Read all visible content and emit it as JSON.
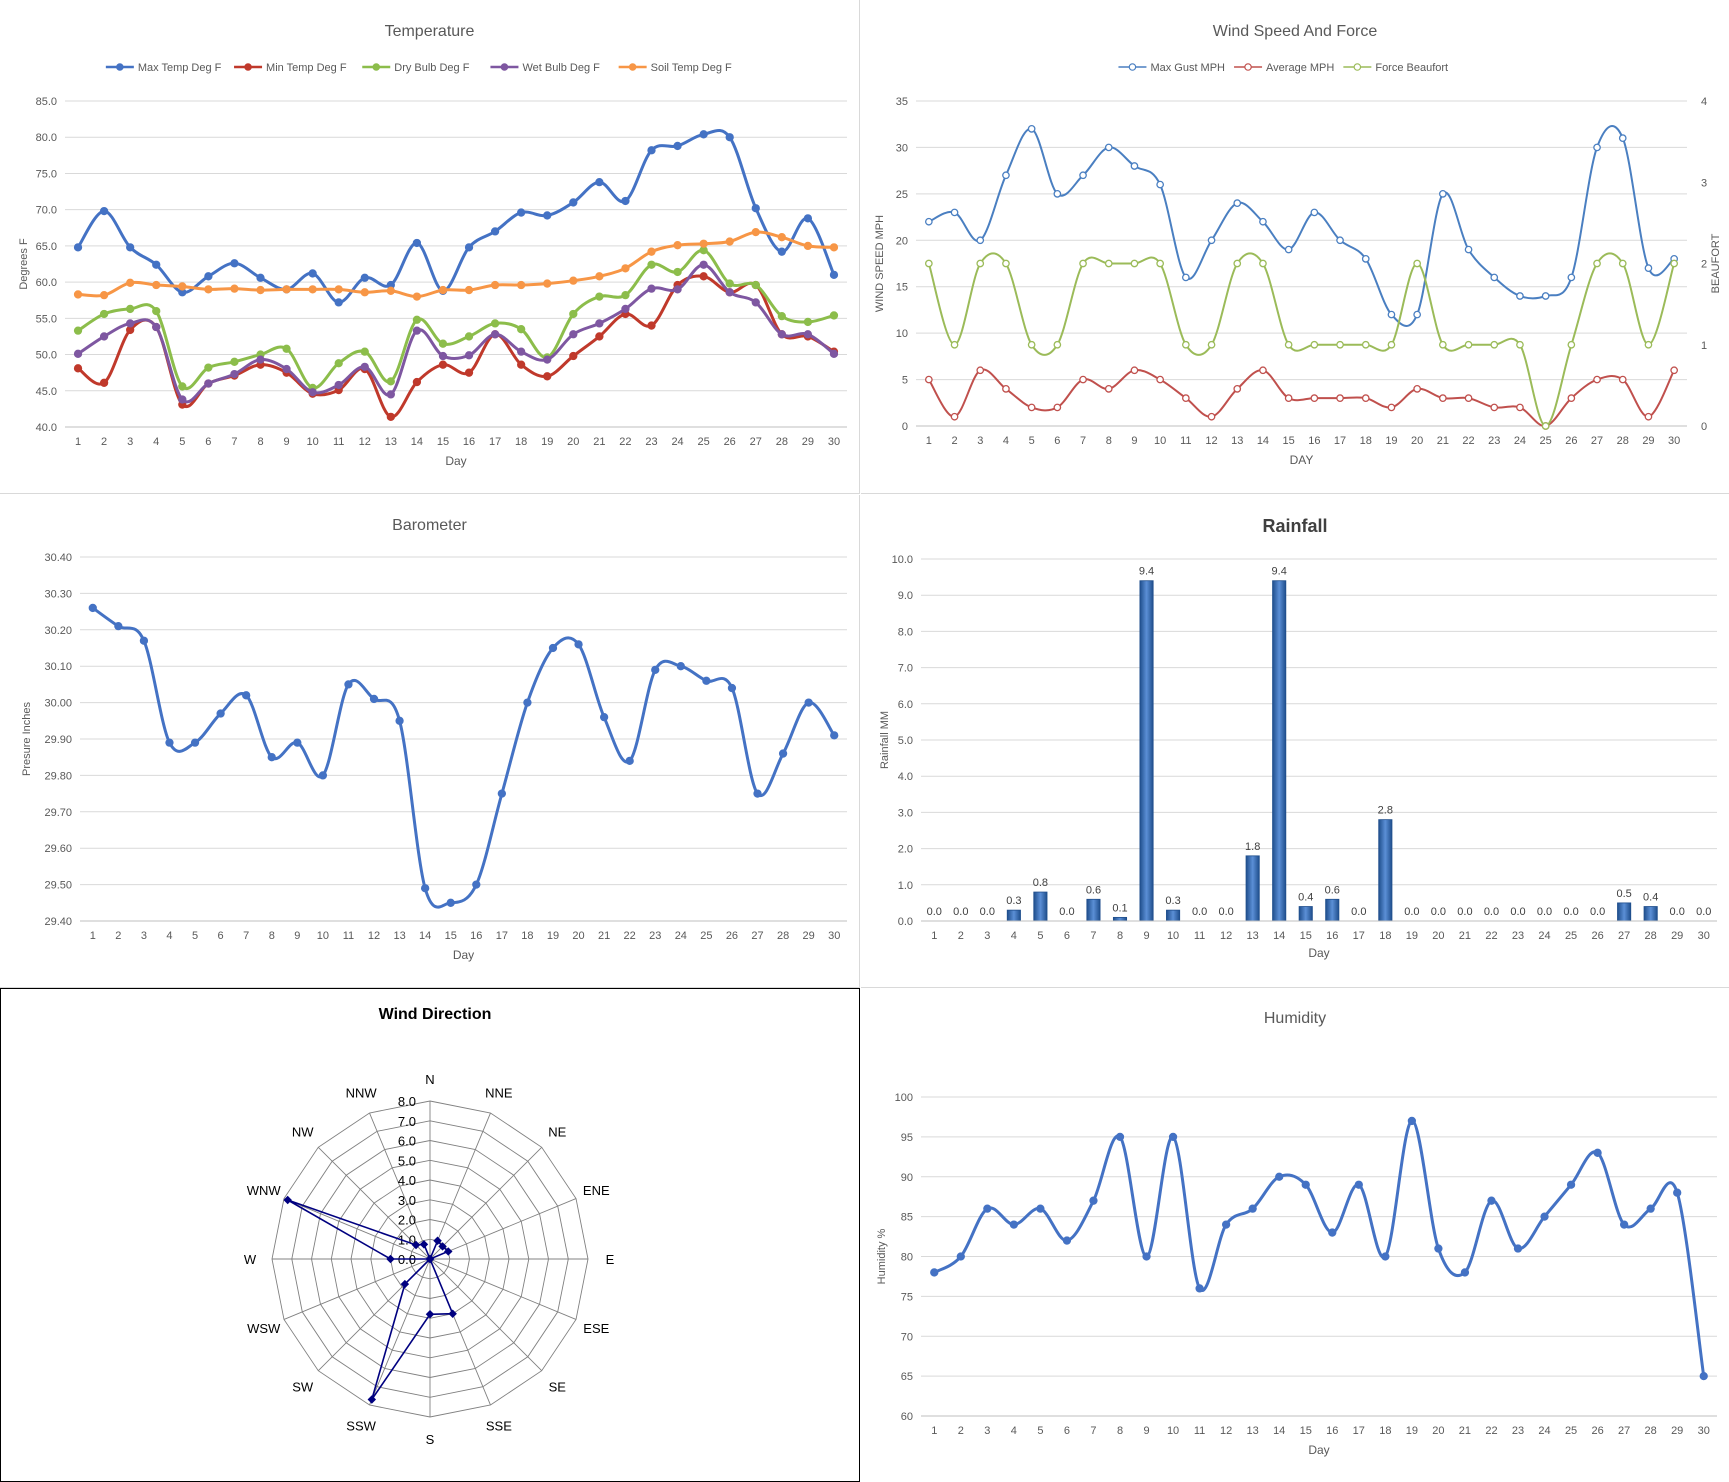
{
  "chart_data": [
    {
      "id": "temp",
      "type": "line",
      "title": "Temperature",
      "xlabel": "Day",
      "ylabel": "Degrees F",
      "ylim": [
        40,
        85
      ],
      "yticks": [
        "40.0",
        "45.0",
        "50.0",
        "55.0",
        "60.0",
        "65.0",
        "70.0",
        "75.0",
        "80.0",
        "85.0"
      ],
      "legend_position": "top",
      "grid": true,
      "x": [
        1,
        2,
        3,
        4,
        5,
        6,
        7,
        8,
        9,
        10,
        11,
        12,
        13,
        14,
        15,
        16,
        17,
        18,
        19,
        20,
        21,
        22,
        23,
        24,
        25,
        26,
        27,
        28,
        29,
        30
      ],
      "series": [
        {
          "name": "Max Temp Deg F",
          "color": "#4472c4",
          "values": [
            64.8,
            69.8,
            64.8,
            62.4,
            58.6,
            60.8,
            62.6,
            60.6,
            59.0,
            61.2,
            57.2,
            60.6,
            59.6,
            65.4,
            58.8,
            64.8,
            67.0,
            69.6,
            69.2,
            71.0,
            73.8,
            71.2,
            78.2,
            78.8,
            80.4,
            80.0,
            70.2,
            64.2,
            68.8,
            61.0
          ]
        },
        {
          "name": "Min Temp Deg F",
          "color": "#c0392b",
          "values": [
            48.1,
            46.1,
            53.4,
            53.8,
            43.1,
            46.0,
            47.1,
            48.6,
            47.5,
            44.6,
            45.1,
            48.0,
            41.4,
            46.2,
            48.6,
            47.5,
            52.8,
            48.6,
            47.0,
            49.8,
            52.5,
            55.6,
            54.0,
            59.6,
            60.8,
            58.6,
            59.6,
            52.8,
            52.5,
            50.4
          ]
        },
        {
          "name": "Dry Bulb Deg F",
          "color": "#8cbd4b",
          "values": [
            53.3,
            55.6,
            56.3,
            56.0,
            45.6,
            48.2,
            49.0,
            50.0,
            50.8,
            45.4,
            48.8,
            50.4,
            46.3,
            54.8,
            51.5,
            52.5,
            54.3,
            53.5,
            49.6,
            55.6,
            58.0,
            58.2,
            62.4,
            61.4,
            64.4,
            59.8,
            59.6,
            55.3,
            54.5,
            55.4
          ]
        },
        {
          "name": "Wet Bulb Deg F",
          "color": "#7e57a1",
          "values": [
            50.1,
            52.5,
            54.3,
            53.8,
            43.8,
            46.0,
            47.3,
            49.3,
            48.0,
            44.8,
            45.8,
            48.3,
            44.5,
            53.3,
            49.8,
            49.9,
            52.8,
            50.4,
            49.3,
            52.8,
            54.3,
            56.3,
            59.1,
            59.0,
            62.4,
            58.6,
            57.2,
            52.8,
            52.8,
            50.1
          ]
        },
        {
          "name": "Soil Temp Deg F",
          "color": "#f79646",
          "values": [
            58.3,
            58.2,
            59.9,
            59.6,
            59.4,
            59.0,
            59.1,
            58.9,
            59.0,
            59.0,
            59.0,
            58.6,
            58.8,
            58.0,
            58.9,
            58.9,
            59.6,
            59.6,
            59.8,
            60.2,
            60.8,
            61.9,
            64.2,
            65.1,
            65.3,
            65.6,
            66.9,
            66.2,
            65.0,
            64.8
          ]
        }
      ]
    },
    {
      "id": "wind",
      "type": "line",
      "title": "Wind Speed And Force",
      "xlabel": "DAY",
      "ylabel": "WIND SPEED MPH",
      "y2label": "BEAUFORT",
      "ylim": [
        0,
        35
      ],
      "y2lim": [
        0,
        4
      ],
      "yticks": [
        "0",
        "5",
        "10",
        "15",
        "20",
        "25",
        "30",
        "35"
      ],
      "y2ticks": [
        "0",
        "1",
        "2",
        "3",
        "4"
      ],
      "legend_position": "top",
      "x": [
        1,
        2,
        3,
        4,
        5,
        6,
        7,
        8,
        9,
        10,
        11,
        12,
        13,
        14,
        15,
        16,
        17,
        18,
        19,
        20,
        21,
        22,
        23,
        24,
        25,
        26,
        27,
        28,
        29,
        30
      ],
      "series": [
        {
          "name": "Max Gust MPH",
          "color": "#4a7fc1",
          "axis": "left",
          "values": [
            22,
            23,
            20,
            27,
            32,
            25,
            27,
            30,
            28,
            26,
            16,
            20,
            24,
            22,
            19,
            23,
            20,
            18,
            12,
            12,
            25,
            19,
            16,
            14,
            14,
            16,
            30,
            31,
            17,
            18
          ]
        },
        {
          "name": "Average MPH",
          "color": "#c0504d",
          "axis": "left",
          "values": [
            5,
            1,
            6,
            4,
            2,
            2,
            5,
            4,
            6,
            5,
            3,
            1,
            4,
            6,
            3,
            3,
            3,
            3,
            2,
            4,
            3,
            3,
            2,
            2,
            0,
            3,
            5,
            5,
            1,
            6
          ]
        },
        {
          "name": "Force Beaufort",
          "color": "#9bbb59",
          "axis": "right",
          "values": [
            2,
            1,
            2,
            2,
            1,
            1,
            2,
            2,
            2,
            2,
            1,
            1,
            2,
            2,
            1,
            1,
            1,
            1,
            1,
            2,
            1,
            1,
            1,
            1,
            0,
            1,
            2,
            2,
            1,
            2
          ]
        }
      ]
    },
    {
      "id": "baro",
      "type": "line",
      "title": "Barometer",
      "xlabel": "Day",
      "ylabel": "Presure Inches",
      "ylim": [
        29.4,
        30.4
      ],
      "yticks": [
        "29.40",
        "29.50",
        "29.60",
        "29.70",
        "29.80",
        "29.90",
        "30.00",
        "30.10",
        "30.20",
        "30.30",
        "30.40"
      ],
      "grid": true,
      "x": [
        1,
        2,
        3,
        4,
        5,
        6,
        7,
        8,
        9,
        10,
        11,
        12,
        13,
        14,
        15,
        16,
        17,
        18,
        19,
        20,
        21,
        22,
        23,
        24,
        25,
        26,
        27,
        28,
        29,
        30
      ],
      "series": [
        {
          "name": "",
          "color": "#4472c4",
          "values": [
            30.26,
            30.21,
            30.17,
            29.89,
            29.89,
            29.97,
            30.02,
            29.85,
            29.89,
            29.8,
            30.05,
            30.01,
            29.95,
            29.49,
            29.45,
            29.5,
            29.75,
            30.0,
            30.15,
            30.16,
            29.96,
            29.84,
            30.09,
            30.1,
            30.06,
            30.04,
            29.75,
            29.86,
            30.0,
            29.91
          ]
        }
      ]
    },
    {
      "id": "rain",
      "type": "bar",
      "title": "Rainfall",
      "xlabel": "Day",
      "ylabel": "Rainfall MM",
      "ylim": [
        0,
        10
      ],
      "yticks": [
        "0.0",
        "1.0",
        "2.0",
        "3.0",
        "4.0",
        "5.0",
        "6.0",
        "7.0",
        "8.0",
        "9.0",
        "10.0"
      ],
      "grid": true,
      "categories": [
        "1",
        "2",
        "3",
        "4",
        "5",
        "6",
        "7",
        "8",
        "9",
        "10",
        "11",
        "12",
        "13",
        "14",
        "15",
        "16",
        "17",
        "18",
        "19",
        "20",
        "21",
        "22",
        "23",
        "24",
        "25",
        "26",
        "27",
        "28",
        "29",
        "30"
      ],
      "values": [
        0.0,
        0.0,
        0.0,
        0.3,
        0.8,
        0.0,
        0.6,
        0.1,
        9.4,
        0.3,
        0.0,
        0.0,
        1.8,
        9.4,
        0.4,
        0.6,
        0.0,
        2.8,
        0.0,
        0.0,
        0.0,
        0.0,
        0.0,
        0.0,
        0.0,
        0.0,
        0.5,
        0.4,
        0.0,
        0.0
      ],
      "labels": [
        "0.0",
        "0.0",
        "0.0",
        "0.3",
        "0.8",
        "0.0",
        "0.6",
        "0.1",
        "9.4",
        "0.3",
        "0.0",
        "0.0",
        "1.8",
        "9.4",
        "0.4",
        "0.6",
        "0.0",
        "2.8",
        "0.0",
        "0.0",
        "0.0",
        "0.0",
        "0.0",
        "0.0",
        "0.0",
        "0.0",
        "0.5",
        "0.4",
        "0.0",
        "0.0"
      ],
      "color": "#3a6fb5"
    },
    {
      "id": "dir",
      "type": "radar",
      "title": "Wind Direction",
      "rlim": [
        0,
        8
      ],
      "rticks": [
        "0.0",
        "1.0",
        "2.0",
        "3.0",
        "4.0",
        "5.0",
        "6.0",
        "7.0",
        "8.0"
      ],
      "directions": [
        "N",
        "NNE",
        "NE",
        "ENE",
        "E",
        "ESE",
        "SE",
        "SSE",
        "S",
        "SSW",
        "SW",
        "WSW",
        "W",
        "WNW",
        "NW",
        "NNW"
      ],
      "values": [
        0,
        1,
        0.9,
        1,
        0,
        0,
        0,
        3,
        2.8,
        7.7,
        1.8,
        0,
        2,
        7.8,
        1,
        0.8
      ],
      "color": "#000080"
    },
    {
      "id": "hum",
      "type": "line",
      "title": "Humidity",
      "xlabel": "Day",
      "ylabel": "Humidity %",
      "ylim": [
        60,
        100
      ],
      "yticks": [
        "60",
        "65",
        "70",
        "75",
        "80",
        "85",
        "90",
        "95",
        "100"
      ],
      "grid": true,
      "x": [
        1,
        2,
        3,
        4,
        5,
        6,
        7,
        8,
        9,
        10,
        11,
        12,
        13,
        14,
        15,
        16,
        17,
        18,
        19,
        20,
        21,
        22,
        23,
        24,
        25,
        26,
        27,
        28,
        29,
        30
      ],
      "series": [
        {
          "name": "",
          "color": "#4472c4",
          "values": [
            78,
            80,
            86,
            84,
            86,
            82,
            87,
            95,
            80,
            95,
            76,
            84,
            86,
            90,
            89,
            83,
            89,
            80,
            97,
            81,
            78,
            87,
            81,
            85,
            89,
            93,
            84,
            86,
            88,
            65
          ]
        }
      ]
    }
  ]
}
